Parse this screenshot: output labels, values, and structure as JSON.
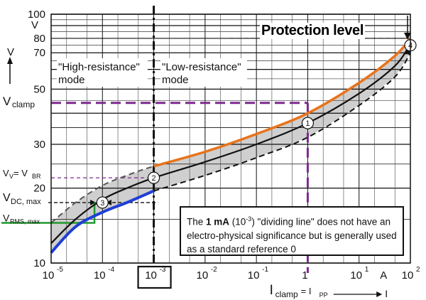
{
  "chart_data": {
    "type": "line",
    "x_scale": "log",
    "y_scale": "log",
    "xlim": [
      1e-05,
      100
    ],
    "ylim": [
      10,
      100
    ],
    "x_ticks": [
      {
        "v": 1e-05,
        "base": "10",
        "exp": "-5"
      },
      {
        "v": 0.0001,
        "base": "10",
        "exp": "-4"
      },
      {
        "v": 0.001,
        "base": "10",
        "exp": "-3"
      },
      {
        "v": 0.01,
        "base": "10",
        "exp": "-2"
      },
      {
        "v": 0.1,
        "base": "10",
        "exp": "-1"
      },
      {
        "v": 1,
        "base": "1",
        "exp": "0"
      },
      {
        "v": 10,
        "base": "10",
        "exp": "1"
      },
      {
        "v": 100,
        "base": "10",
        "exp": "2"
      }
    ],
    "y_ticks": [
      {
        "v": 10,
        "label": "10"
      },
      {
        "v": 20,
        "label": "20"
      },
      {
        "v": 30,
        "label": "30"
      },
      {
        "v": 50,
        "label": "50"
      },
      {
        "v": 70,
        "label": "70"
      },
      {
        "v": 80,
        "label": "80"
      },
      {
        "v": 100,
        "label": "100"
      }
    ],
    "y_unit": "V",
    "y_unit_top": "V",
    "x_unit": "A",
    "xlabel_main": "I",
    "xlabel_sub": "clamp",
    "xlabel_rest": " = I",
    "xlabel_sub2": "PP",
    "xlabel_end": "I",
    "series": [
      {
        "name": "upper",
        "color": "#555555",
        "dash": true,
        "x": [
          1e-05,
          3e-05,
          0.0001,
          0.0003,
          0.001,
          0.01,
          0.1,
          1,
          10,
          50,
          100
        ],
        "y": [
          14.5,
          17.5,
          20.5,
          22.5,
          24.5,
          28,
          33,
          40,
          53,
          68,
          80
        ]
      },
      {
        "name": "nominal",
        "color": "#111111",
        "dash": false,
        "x": [
          1e-05,
          3e-05,
          0.0001,
          0.0003,
          0.001,
          0.01,
          0.1,
          1,
          10,
          50,
          100
        ],
        "y": [
          12,
          15,
          18,
          20,
          22,
          25.5,
          30,
          36.5,
          48,
          62,
          76
        ]
      },
      {
        "name": "lower",
        "color": "#111111",
        "dash": true,
        "x": [
          0.001,
          0.01,
          0.1,
          1,
          10,
          50,
          100
        ],
        "y": [
          19.5,
          22.5,
          26.5,
          32,
          43,
          56,
          70
        ]
      }
    ],
    "highlight_upper": {
      "color": "#e8731a",
      "x": [
        0.001,
        0.01,
        0.1,
        1,
        10,
        50,
        100
      ],
      "y": [
        24.5,
        28,
        33,
        40,
        53,
        68,
        80
      ]
    },
    "highlight_lower": {
      "color": "#1f3fd6",
      "x": [
        1e-05,
        3e-05,
        0.0001,
        0.0003,
        0.001
      ],
      "y": [
        11,
        14,
        16,
        17.5,
        19.5
      ]
    },
    "markers": [
      {
        "label": "1",
        "x": 1,
        "y": 36.5
      },
      {
        "label": "2",
        "x": 0.001,
        "y": 22
      },
      {
        "label": "3",
        "x": 0.0001,
        "y": 17.5
      },
      {
        "label": "4",
        "x": 100,
        "y": 75
      }
    ],
    "v_clamp": 44,
    "v_br": 22,
    "v_dc_max": 17.5,
    "v_rms_max": 14.5,
    "x_at_clamp": 1,
    "x_at_rms": 7e-05,
    "divider_x": 0.001,
    "protection_level": 80,
    "left_annotations": {
      "v_clamp": {
        "main": "V",
        "sub": "clamp"
      },
      "v_br": {
        "main": "V",
        "sub": "V",
        "mid": "= V",
        "sub2": "BR"
      },
      "v_dc": {
        "main": "V",
        "sub": "DC, max"
      },
      "v_rms": {
        "main": "V",
        "sub": "RMS, max",
        "color": "#1f9a2c"
      }
    }
  },
  "labels": {
    "protection": "Protection level",
    "mode_high_1": "\"High-resistance\"",
    "mode_high_2": "mode",
    "mode_low_1": "\"Low-resistance\"",
    "mode_low_2": "mode",
    "note_pre": "The ",
    "note_bold": "1 mA",
    "note_exp_open": " (10",
    "note_exp": "-3",
    "note_rest": ") \"dividing line\" does not have an electro-physical significance but is generally used as a standard reference 0"
  },
  "colors": {
    "orange": "#e8731a",
    "blue": "#1f3fd6",
    "green": "#1f9a2c",
    "purple": "#7d2a8f",
    "band": "#cfcfcf"
  }
}
